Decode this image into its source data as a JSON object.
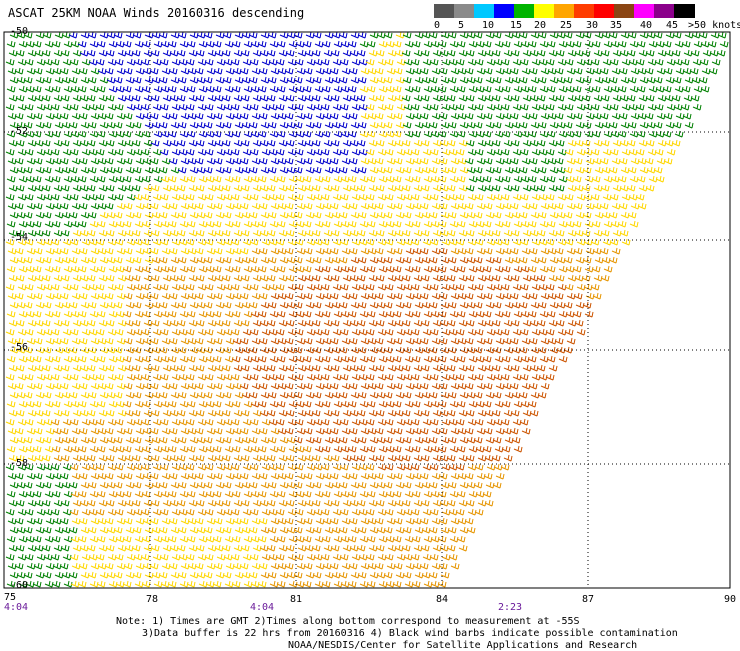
{
  "title": "ASCAT 25KM NOAA Winds 20160316 descending",
  "legend": {
    "labels": [
      "0",
      "5",
      "10",
      "15",
      "20",
      "25",
      "30",
      "35",
      "40",
      "45",
      ">50 knots"
    ],
    "colors": [
      "#555555",
      "#8a8a8a",
      "#00c8ff",
      "#0000ff",
      "#00b400",
      "#ffff00",
      "#ffa500",
      "#ff3c00",
      "#ff0000",
      "#8b4513",
      "#ff00ff",
      "#8b008b",
      "#000000"
    ]
  },
  "latitude_labels": [
    "-50",
    "-52",
    "-54",
    "-56",
    "-58",
    "-60"
  ],
  "longitude_labels": [
    "75",
    "78",
    "81",
    "84",
    "87",
    "90"
  ],
  "time_labels": [
    "4:04",
    "4:04",
    "2:23"
  ],
  "notes": [
    "Note: 1) Times are GMT 2)Times along bottom correspond to measurement at -55S",
    "3)Data buffer is 22 hrs from 20160316 4) Black wind barbs indicate possible contamination",
    "NOAA/NESDIS/Center for Satellite Applications and Research"
  ],
  "wind_zones": [
    {
      "name": "blue",
      "color": "#0000cc"
    },
    {
      "name": "green",
      "color": "#008000"
    },
    {
      "name": "yellow",
      "color": "#ffd700"
    },
    {
      "name": "orange",
      "color": "#e69500"
    },
    {
      "name": "dark-orange",
      "color": "#cc5500"
    }
  ]
}
